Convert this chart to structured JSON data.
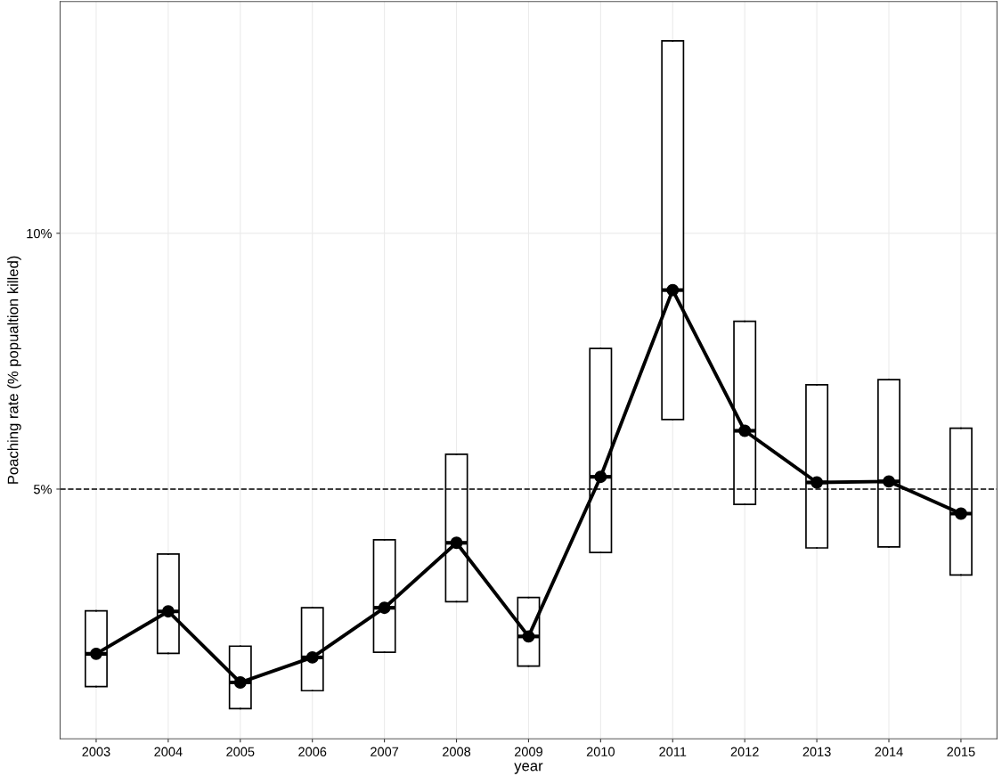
{
  "chart_data": {
    "type": "box",
    "xlabel": "year",
    "ylabel": "Poaching rate (% popualtion killed)",
    "categories": [
      "2003",
      "2004",
      "2005",
      "2006",
      "2007",
      "2008",
      "2009",
      "2010",
      "2011",
      "2012",
      "2013",
      "2014",
      "2015"
    ],
    "boxes": [
      {
        "low": 1.14,
        "q1": 1.14,
        "median": 1.78,
        "q3": 2.62,
        "high": 2.62
      },
      {
        "low": 1.79,
        "q1": 1.79,
        "median": 2.61,
        "q3": 3.73,
        "high": 3.73
      },
      {
        "low": 0.71,
        "q1": 0.71,
        "median": 1.22,
        "q3": 1.93,
        "high": 1.93
      },
      {
        "low": 1.06,
        "q1": 1.06,
        "median": 1.71,
        "q3": 2.68,
        "high": 2.68
      },
      {
        "low": 1.81,
        "q1": 1.81,
        "median": 2.68,
        "q3": 4.01,
        "high": 4.01
      },
      {
        "low": 2.8,
        "q1": 2.8,
        "median": 3.95,
        "q3": 5.68,
        "high": 5.68
      },
      {
        "low": 1.54,
        "q1": 1.54,
        "median": 2.12,
        "q3": 2.88,
        "high": 2.88
      },
      {
        "low": 3.76,
        "q1": 3.76,
        "median": 5.24,
        "q3": 7.75,
        "high": 7.75
      },
      {
        "low": 6.36,
        "q1": 6.36,
        "median": 8.89,
        "q3": 13.76,
        "high": 13.76
      },
      {
        "low": 4.7,
        "q1": 4.7,
        "median": 6.14,
        "q3": 8.28,
        "high": 8.28
      },
      {
        "low": 3.85,
        "q1": 3.85,
        "median": 5.13,
        "q3": 7.04,
        "high": 7.04
      },
      {
        "low": 3.87,
        "q1": 3.87,
        "median": 5.15,
        "q3": 7.14,
        "high": 7.14
      },
      {
        "low": 3.32,
        "q1": 3.32,
        "median": 4.52,
        "q3": 6.19,
        "high": 6.19
      }
    ],
    "series": [
      {
        "type": "line",
        "color": "#000000",
        "values": [
          1.78,
          2.61,
          1.22,
          1.71,
          2.68,
          3.95,
          2.12,
          5.24,
          8.89,
          6.14,
          5.13,
          5.15,
          4.52
        ]
      }
    ],
    "marker": "circle",
    "line_style": "solid",
    "ylim": [
      0.12,
      14.53
    ],
    "yticks": [
      {
        "value": 5,
        "label": "5%"
      },
      {
        "value": 10,
        "label": "10%"
      }
    ],
    "ref_lines": [
      {
        "axis": "y",
        "value": 5,
        "line_style": "dashed",
        "color": "#000000"
      }
    ],
    "grid": true
  }
}
